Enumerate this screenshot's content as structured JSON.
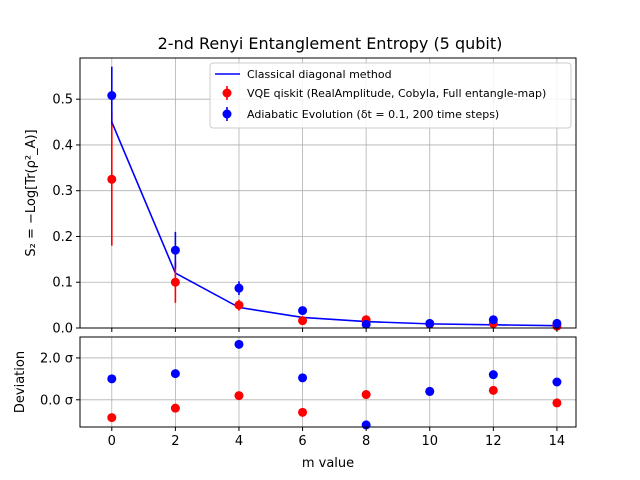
{
  "chart_data": {
    "type": "scatter",
    "title": "2-nd Renyi Entanglement Entropy (5 qubit)",
    "xlabel": "m value",
    "xticks": [
      "0",
      "2",
      "4",
      "6",
      "8",
      "10",
      "12",
      "14"
    ],
    "grid": true,
    "legend_position": "top-right",
    "top": {
      "ylabel": "S₂ = −Log[Tr(ρ²_A)]",
      "ylim": [
        0,
        0.59
      ],
      "yticks": [
        "0.0",
        "0.1",
        "0.2",
        "0.3",
        "0.4",
        "0.5"
      ],
      "series": [
        {
          "name": "Classical diagonal method",
          "kind": "line",
          "color": "#0000ff",
          "x": [
            0,
            2,
            4,
            6,
            8,
            10,
            12,
            14
          ],
          "y": [
            0.45,
            0.12,
            0.045,
            0.023,
            0.014,
            0.009,
            0.007,
            0.005
          ]
        },
        {
          "name": "VQE qiskit (RealAmplitude, Cobyla, Full entangle-map)",
          "kind": "errorbar",
          "color": "#ff0000",
          "x": [
            0,
            2,
            4,
            6,
            8,
            10,
            12,
            14
          ],
          "y": [
            0.325,
            0.1,
            0.05,
            0.016,
            0.018,
            0.009,
            0.01,
            0.004
          ],
          "err": [
            0.145,
            0.045,
            0.012,
            0.005,
            0.006,
            0.002,
            0.002,
            0.001
          ]
        },
        {
          "name": "Adiabatic Evolution (δt = 0.1, 200 time steps)",
          "kind": "errorbar",
          "color": "#0000ff",
          "x": [
            0,
            2,
            4,
            6,
            8,
            10,
            12,
            14
          ],
          "y": [
            0.508,
            0.17,
            0.087,
            0.038,
            0.008,
            0.01,
            0.018,
            0.01
          ],
          "err": [
            0.063,
            0.04,
            0.015,
            0.007,
            0.004,
            0.003,
            0.004,
            0.003
          ]
        }
      ]
    },
    "bottom": {
      "ylabel": "Deviation",
      "ylim": [
        -1.3,
        3.0
      ],
      "yticks": [
        "2.0 σ",
        "0.0 σ"
      ],
      "ytick_values": [
        2.0,
        0.0
      ],
      "series": [
        {
          "name": "VQE deviation",
          "color": "#ff0000",
          "x": [
            0,
            2,
            4,
            6,
            8,
            10,
            12,
            14
          ],
          "y": [
            -0.85,
            -0.4,
            0.2,
            -0.6,
            0.25,
            0.4,
            0.45,
            -0.15
          ]
        },
        {
          "name": "Adiabatic deviation",
          "color": "#0000ff",
          "x": [
            0,
            2,
            4,
            6,
            8,
            10,
            12,
            14
          ],
          "y": [
            1.0,
            1.25,
            2.65,
            1.05,
            -1.2,
            0.4,
            1.2,
            0.85
          ]
        }
      ]
    }
  }
}
